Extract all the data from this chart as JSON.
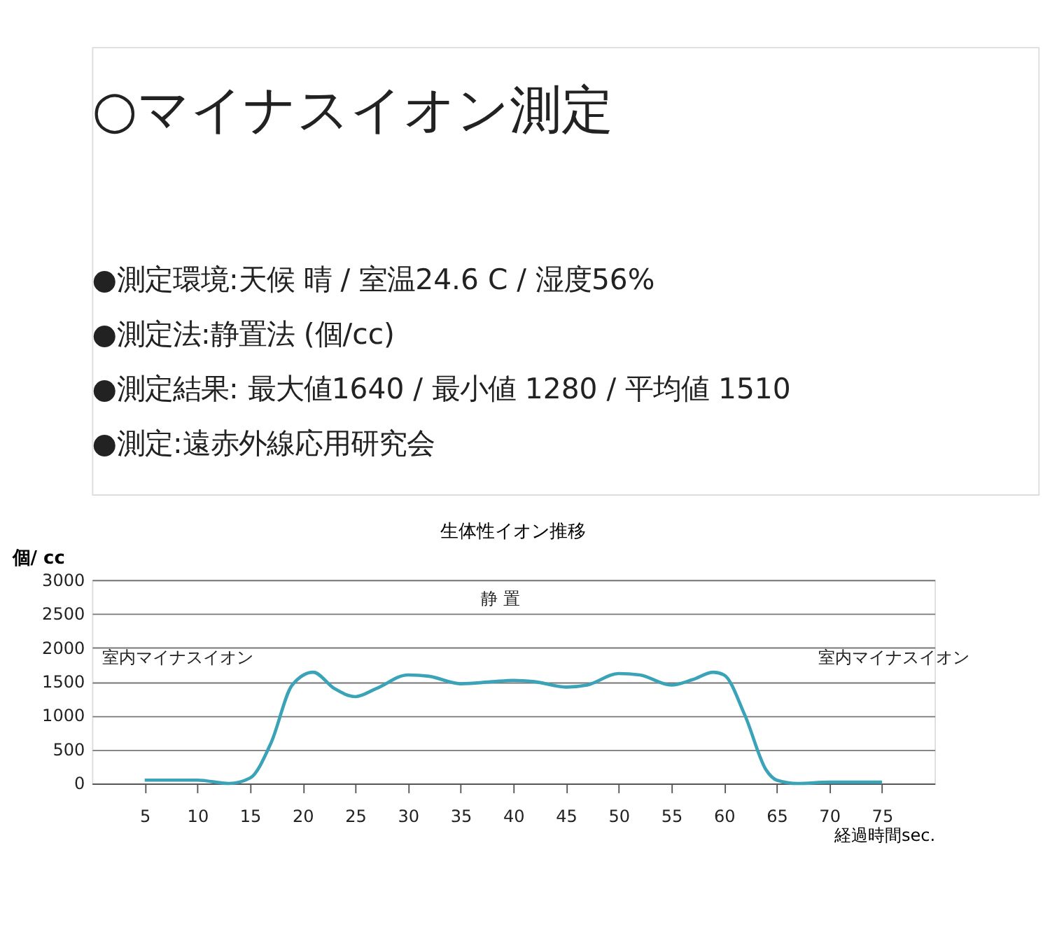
{
  "chart_data": {
    "type": "line",
    "title": "生体性イオン推移",
    "xlabel": "経過時間sec.",
    "ylabel": "個/ cc",
    "annotations": [
      "○マイナスイオン測定",
      "●測定環境:天候 晴 / 室温24.6 C / 湿度56%",
      "●測定法:静置法 (個/cc)",
      "●測定結果: 最大値1640 / 最小値 1280 / 平均値 1510",
      "●測定:遠赤外線応用研究会",
      "室内マイナスイオン",
      "静 置",
      "室内マイナスイオン"
    ],
    "x": [
      5,
      10,
      13,
      15,
      17,
      19,
      21,
      23,
      25,
      27,
      30,
      32,
      35,
      38,
      40,
      42,
      45,
      47,
      50,
      52,
      55,
      57,
      59,
      60,
      62,
      64,
      65,
      67,
      70,
      75
    ],
    "series": [
      {
        "color": "#3aa3b8",
        "values": [
          50,
          50,
          0,
          80,
          600,
          1450,
          1640,
          1400,
          1280,
          1400,
          1600,
          1580,
          1470,
          1500,
          1520,
          1500,
          1420,
          1450,
          1620,
          1600,
          1450,
          1530,
          1640,
          1600,
          1000,
          200,
          50,
          0,
          20,
          20
        ]
      }
    ],
    "xlim": [
      0,
      80
    ],
    "xticks": [
      5,
      10,
      15,
      20,
      25,
      30,
      35,
      40,
      45,
      50,
      55,
      60,
      65,
      70,
      75
    ],
    "ylim": [
      0,
      3000
    ],
    "yticks": [
      0,
      500,
      1000,
      1500,
      2000,
      2500,
      3000
    ],
    "grid": "y",
    "legend": false,
    "marker": "none",
    "line_style": "solid"
  }
}
